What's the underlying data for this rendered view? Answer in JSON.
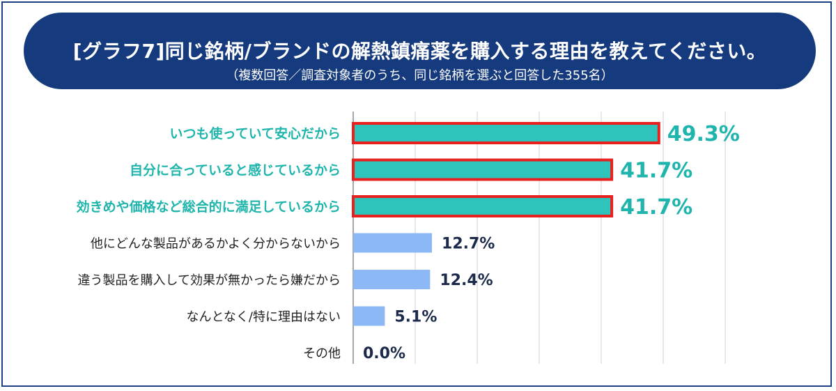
{
  "header": {
    "title": "[グラフ7]同じ銘柄/ブランドの解熱鎮痛薬を購入する理由を教えてください。",
    "subtitle": "（複数回答／調査対象者のうち、同じ銘柄を選ぶと回答した355名）"
  },
  "chart_data": {
    "type": "bar",
    "orientation": "horizontal",
    "title": "[グラフ7]同じ銘柄/ブランドの解熱鎮痛薬を購入する理由を教えてください。",
    "subtitle": "（複数回答／調査対象者のうち、同じ銘柄を選ぶと回答した355名）",
    "categories": [
      "いつも使っていて安心だから",
      "自分に合っていると感じているから",
      "効きめや価格など総合的に満足しているから",
      "他にどんな製品があるかよく分からないから",
      "違う製品を購入して効果が無かったら嫌だから",
      "なんとなく/特に理由はない",
      "その他"
    ],
    "values": [
      49.3,
      41.7,
      41.7,
      12.7,
      12.4,
      5.1,
      0.0
    ],
    "value_labels": [
      "49.3%",
      "41.7%",
      "41.7%",
      "12.7%",
      "12.4%",
      "5.1%",
      "0.0%"
    ],
    "highlighted": [
      true,
      true,
      true,
      false,
      false,
      false,
      false
    ],
    "xlim": [
      0,
      60
    ],
    "grid": true,
    "colors": {
      "highlight_bar": "#2ec4bc",
      "highlight_border": "#e8201e",
      "highlight_text": "#1fb5ac",
      "normal_bar": "#8cb8f5",
      "normal_label": "#222222",
      "normal_value": "#1b2a4a",
      "grid": "#d0d0d0",
      "axis": "#888888"
    }
  }
}
